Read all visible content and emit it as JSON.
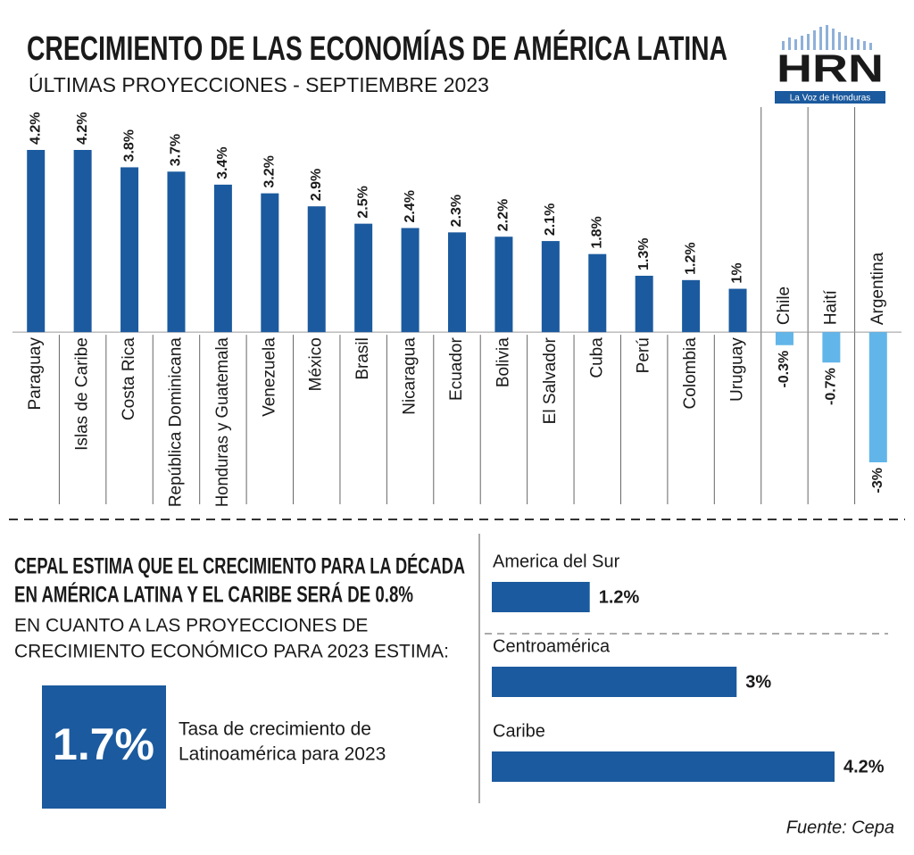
{
  "header": {
    "title": "CRECIMIENTO DE LAS ECONOMÍAS DE AMÉRICA LATINA",
    "subtitle": "ÚLTIMAS PROYECCIONES - SEPTIEMBRE 2023"
  },
  "logo": {
    "name": "HRN",
    "tagline": "La Voz de Honduras"
  },
  "chart_data": [
    {
      "type": "bar",
      "categories": [
        "Paraguay",
        "Islas de Caribe",
        "Costa Rica",
        "República Dominicana",
        "Honduras y Guatemala",
        "Venezuela",
        "México",
        "Brasil",
        "Nicaragua",
        "Ecuador",
        "Bolivia",
        "El Salvador",
        "Cuba",
        "Perú",
        "Colombia",
        "Uruguay",
        "Chile",
        "Haití",
        "Argentina"
      ],
      "values": [
        4.2,
        4.2,
        3.8,
        3.7,
        3.4,
        3.2,
        2.9,
        2.5,
        2.4,
        2.3,
        2.2,
        2.1,
        1.8,
        1.3,
        1.2,
        1,
        -0.3,
        -0.7,
        -3
      ],
      "value_labels": [
        "4.2%",
        "4.2%",
        "3.8%",
        "3.7%",
        "3.4%",
        "3.2%",
        "2.9%",
        "2.5%",
        "2.4%",
        "2.3%",
        "2.2%",
        "2.1%",
        "1.8%",
        "1.3%",
        "1.2%",
        "1%",
        "-0.3%",
        "-0.7%",
        "-3%"
      ],
      "color": "#1b5a9e",
      "negative_color": "#62b5e9",
      "ylim": [
        -3,
        4.2
      ]
    },
    {
      "type": "bar",
      "orientation": "horizontal",
      "categories": [
        "America del  Sur",
        "Centroamérica",
        "Caribe"
      ],
      "values": [
        1.2,
        3,
        4.2
      ],
      "value_labels": [
        "1.2%",
        "3%",
        "4.2%"
      ],
      "color": "#1b5a9e",
      "xlim": [
        0,
        4.2
      ]
    }
  ],
  "cepal": {
    "heading": [
      "CEPAL ESTIMA QUE EL CRECIMIENTO PARA LA DÉCADA",
      "EN AMÉRICA LATINA Y EL CARIBE SERÁ DE 0.8%"
    ],
    "text": [
      "EN CUANTO A LAS PROYECCIONES DE",
      "CRECIMIENTO ECONÓMICO PARA 2023 ESTIMA:"
    ],
    "highlight": "1.7%",
    "highlight_text": [
      "Tasa  de crecimiento de",
      "Latinoamérica para 2023"
    ]
  },
  "source": "Fuente: Cepa"
}
